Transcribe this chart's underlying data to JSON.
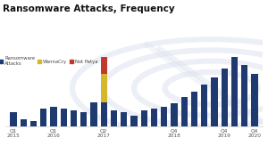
{
  "title": "Ransomware Attacks, Frequency",
  "bar_color": "#1e3a70",
  "wannacry_color": "#d4b82a",
  "notpetya_color": "#c0392b",
  "background_color": "#ffffff",
  "x_tick_labels": [
    "Q1\n2015",
    "Q1\n2016",
    "Q2\n2017",
    "Q4\n2018",
    "Q4\n2019",
    "Q4\n2020"
  ],
  "x_tick_positions": [
    0,
    4,
    9,
    16,
    21,
    24
  ],
  "base_values": [
    4,
    2,
    1.5,
    5,
    5.5,
    5,
    4.5,
    4,
    7,
    7,
    4.5,
    4,
    3,
    4.5,
    5,
    5.5,
    6.5,
    8.5,
    10,
    12,
    14,
    16.5,
    20,
    17.5,
    15
  ],
  "wannacry_values": [
    0,
    0,
    0,
    0,
    0,
    0,
    0,
    0,
    0,
    8,
    0,
    0,
    0,
    0,
    0,
    0,
    0,
    0,
    0,
    0,
    0,
    0,
    0,
    0,
    0
  ],
  "notpetya_values": [
    0,
    0,
    0,
    0,
    0,
    0,
    0,
    0,
    0,
    5,
    0,
    0,
    0,
    0,
    0,
    0,
    0,
    0,
    0,
    0,
    0,
    0,
    0,
    0,
    0
  ],
  "legend_labels": [
    "Ransomware\nAttacks",
    "WannaCry",
    "Not Petya"
  ],
  "legend_colors": [
    "#1e3a70",
    "#d4b82a",
    "#c0392b"
  ],
  "globe_color": "#dde4ef",
  "spine_color": "#cccccc"
}
